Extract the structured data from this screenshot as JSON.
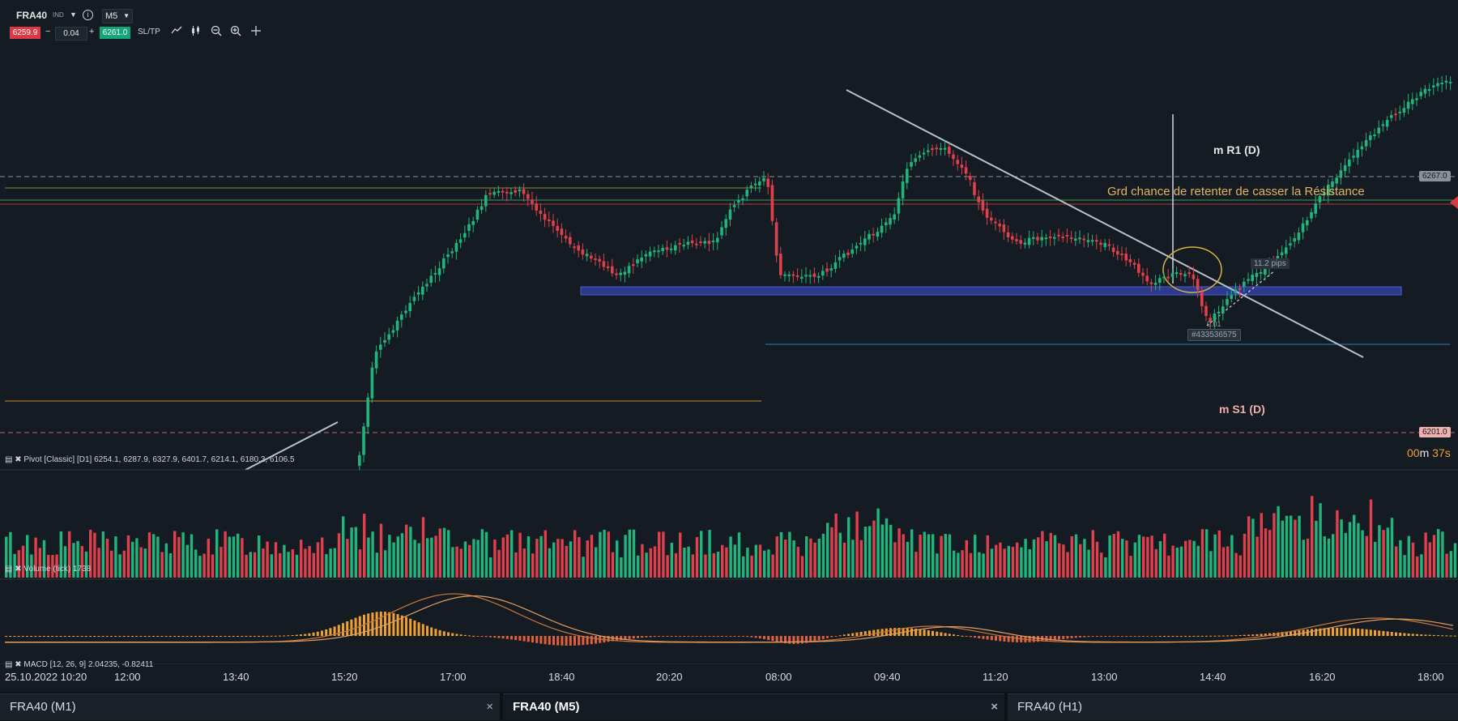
{
  "toolbar": {
    "symbol": "FRA40",
    "symbol_tag": "IND",
    "timeframe": "M5",
    "bid": "6259.9",
    "ask": "6261.0",
    "quantity": "0.04",
    "minus": "−",
    "plus": "+",
    "sltp": "SL/TP",
    "icons": [
      "line-chart-icon",
      "candles-icon",
      "zoom-out-icon",
      "zoom-in-icon",
      "crosshair-icon"
    ]
  },
  "chart": {
    "annotation": "Grd chance de retenter de casser la Résistance",
    "r1_label": "m R1 (D)",
    "s1_label": "m S1 (D)",
    "r1_price": "6267.0",
    "s1_price": "6201.0",
    "pips_label": "11.2 pips",
    "order_label": "#433536575",
    "order_qty": "0.01",
    "timer_min": "00",
    "timer_m": "m ",
    "timer_sec": "37s",
    "colors": {
      "up": "#1fb57c",
      "down": "#e0404b",
      "bg": "#141b22",
      "pivot_band": "#2d3a8c",
      "orange": "#f0a030"
    }
  },
  "indicators": {
    "pivot": "Pivot [Classic] [D1] 6254.1, 6287.9, 6327.9, 6401.7, 6214.1, 6180.3, 6106.5",
    "volume": "Volume (tick) 1738",
    "macd": "MACD [12, 26, 9] 2.04235, -0.82411"
  },
  "xaxis": {
    "date": "25.10.2022 10:20",
    "ticks": [
      "12:00",
      "13:40",
      "15:20",
      "17:00",
      "18:40",
      "20:20",
      "08:00",
      "09:40",
      "11:20",
      "13:00",
      "14:40",
      "16:20",
      "18:00"
    ]
  },
  "tabs": [
    {
      "label": "FRA40 (M1)",
      "close": "×"
    },
    {
      "label": "FRA40 (M5)",
      "close": "×"
    },
    {
      "label": "FRA40 (H1)",
      "close": ""
    }
  ]
}
